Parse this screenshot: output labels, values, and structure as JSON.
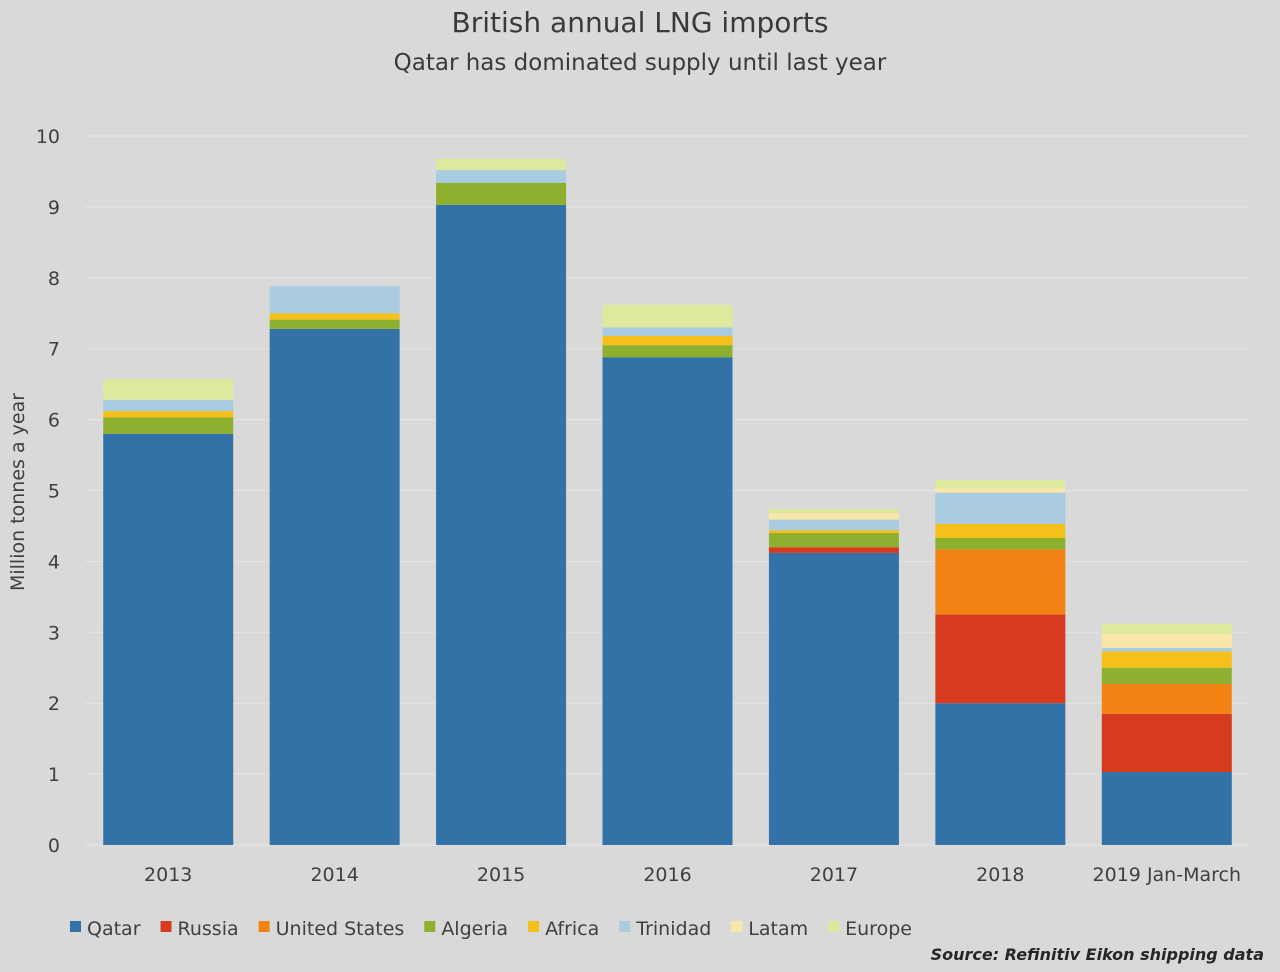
{
  "chart_data": {
    "type": "bar",
    "stacked": true,
    "title": "British annual LNG imports",
    "subtitle": "Qatar has dominated supply until last year",
    "xlabel": "",
    "ylabel": "Million tonnes a year",
    "ylim": [
      0,
      10
    ],
    "yticks": [
      0,
      1,
      2,
      3,
      4,
      5,
      6,
      7,
      8,
      9,
      10
    ],
    "grid": true,
    "legend_position": "bottom-left",
    "categories": [
      "2013",
      "2014",
      "2015",
      "2016",
      "2017",
      "2018",
      "2019 Jan-March"
    ],
    "series": [
      {
        "name": "Qatar",
        "color": "#3372a6",
        "values": [
          5.8,
          7.28,
          9.03,
          6.88,
          4.12,
          2.0,
          1.03
        ]
      },
      {
        "name": "Russia",
        "color": "#d63b1f",
        "values": [
          0.0,
          0.0,
          0.0,
          0.0,
          0.08,
          1.25,
          0.82
        ]
      },
      {
        "name": "United States",
        "color": "#f28214",
        "values": [
          0.0,
          0.0,
          0.0,
          0.0,
          0.0,
          0.92,
          0.42
        ]
      },
      {
        "name": "Algeria",
        "color": "#8fb02f",
        "values": [
          0.23,
          0.13,
          0.31,
          0.17,
          0.2,
          0.16,
          0.23
        ]
      },
      {
        "name": "Africa",
        "color": "#f5c01a",
        "values": [
          0.09,
          0.09,
          0.0,
          0.13,
          0.04,
          0.2,
          0.23
        ]
      },
      {
        "name": "Trinidad",
        "color": "#a9cce0",
        "values": [
          0.16,
          0.38,
          0.18,
          0.12,
          0.15,
          0.44,
          0.05
        ]
      },
      {
        "name": "Latam",
        "color": "#f9e7a8",
        "values": [
          0.0,
          0.0,
          0.0,
          0.0,
          0.09,
          0.06,
          0.2
        ]
      },
      {
        "name": "Europe",
        "color": "#dfe99d",
        "values": [
          0.29,
          0.0,
          0.16,
          0.32,
          0.06,
          0.12,
          0.14
        ]
      }
    ]
  },
  "source": "Source: Refinitiv Eikon shipping data",
  "colors": {
    "background": "#d9d9d9",
    "gridline": "#e6e6e6",
    "text": "#404040"
  }
}
